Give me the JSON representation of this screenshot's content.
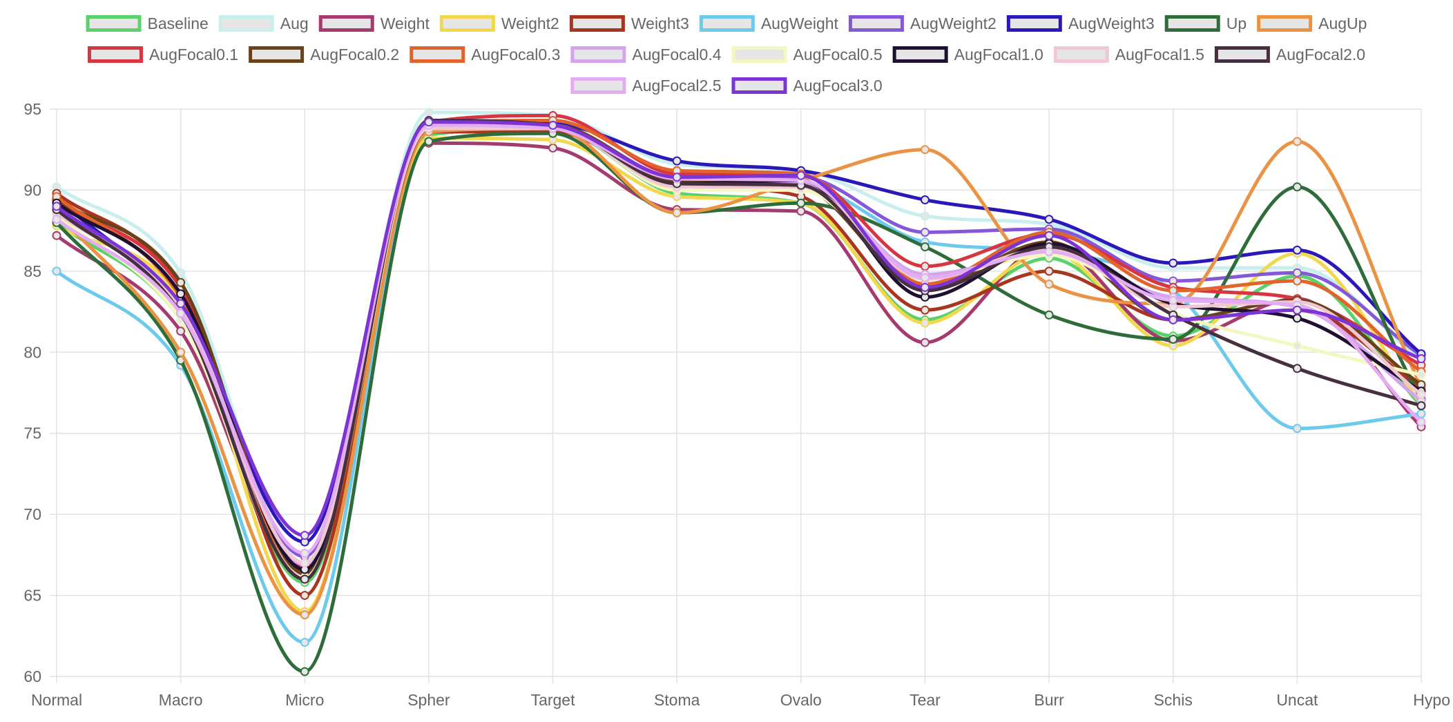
{
  "chart_data": {
    "type": "line",
    "categories": [
      "Normal",
      "Macro",
      "Micro",
      "Spher",
      "Target",
      "Stoma",
      "Ovalo",
      "Tear",
      "Burr",
      "Schis",
      "Uncat",
      "Hypo"
    ],
    "ylim": [
      60,
      95
    ],
    "yticks": [
      60,
      65,
      70,
      75,
      80,
      85,
      90,
      95
    ],
    "grid": true,
    "legend_position": "top",
    "series": [
      {
        "name": "Baseline",
        "color": "#5ad16a",
        "values": [
          88.0,
          82.0,
          65.8,
          93.4,
          93.8,
          89.8,
          89.2,
          82.0,
          85.8,
          81.0,
          84.7,
          76.7
        ]
      },
      {
        "name": "Aug",
        "color": "#c8eeee",
        "values": [
          90.2,
          84.9,
          67.0,
          94.8,
          94.6,
          91.6,
          91.2,
          88.4,
          87.9,
          85.2,
          85.2,
          79.5
        ]
      },
      {
        "name": "Weight",
        "color": "#a53a6e",
        "values": [
          87.2,
          81.3,
          66.2,
          92.9,
          92.6,
          88.8,
          88.7,
          80.6,
          86.6,
          80.7,
          83.3,
          75.4
        ]
      },
      {
        "name": "Weight2",
        "color": "#f2d84e",
        "values": [
          87.8,
          83.2,
          64.0,
          93.2,
          93.1,
          89.6,
          89.2,
          81.8,
          86.2,
          80.4,
          86.1,
          76.8
        ]
      },
      {
        "name": "Weight3",
        "color": "#a83520",
        "values": [
          89.8,
          84.0,
          65.0,
          93.6,
          93.6,
          90.4,
          89.6,
          82.6,
          85.0,
          82.0,
          82.6,
          77.8
        ]
      },
      {
        "name": "AugWeight",
        "color": "#6ecaed",
        "values": [
          85.0,
          79.2,
          62.1,
          93.8,
          94.0,
          90.2,
          90.3,
          86.8,
          86.2,
          83.8,
          75.3,
          76.2
        ]
      },
      {
        "name": "AugWeight2",
        "color": "#8558d8",
        "values": [
          89.0,
          82.8,
          67.4,
          94.0,
          94.0,
          90.8,
          90.8,
          87.4,
          87.6,
          84.4,
          84.9,
          79.8
        ]
      },
      {
        "name": "AugWeight3",
        "color": "#2a18b8",
        "values": [
          89.5,
          82.5,
          68.3,
          94.2,
          94.1,
          91.8,
          91.2,
          89.4,
          88.2,
          85.5,
          86.3,
          79.9
        ]
      },
      {
        "name": "Up",
        "color": "#2e6d3a",
        "values": [
          88.0,
          79.5,
          60.3,
          93.0,
          93.5,
          88.6,
          89.2,
          86.5,
          82.3,
          80.8,
          90.2,
          77.1
        ]
      },
      {
        "name": "AugUp",
        "color": "#ea9344",
        "values": [
          88.6,
          80.0,
          63.8,
          93.6,
          93.8,
          88.6,
          90.6,
          92.5,
          84.2,
          83.0,
          93.0,
          77.9
        ]
      },
      {
        "name": "AugFocal0.1",
        "color": "#d83442",
        "values": [
          89.3,
          84.0,
          66.8,
          94.2,
          94.6,
          91.0,
          90.9,
          85.3,
          87.3,
          84.0,
          83.3,
          79.2
        ]
      },
      {
        "name": "AugFocal0.2",
        "color": "#6b4218",
        "values": [
          89.4,
          84.3,
          66.4,
          93.8,
          94.0,
          90.6,
          90.2,
          84.0,
          86.8,
          82.0,
          83.2,
          78.0
        ]
      },
      {
        "name": "AugFocal0.3",
        "color": "#e0642c",
        "values": [
          89.6,
          83.4,
          66.0,
          94.0,
          94.3,
          91.2,
          91.0,
          84.2,
          87.4,
          83.8,
          84.4,
          78.8
        ]
      },
      {
        "name": "AugFocal0.4",
        "color": "#d4a4ee",
        "values": [
          88.8,
          82.6,
          66.9,
          94.1,
          94.0,
          90.3,
          90.4,
          84.8,
          86.0,
          83.4,
          82.8,
          77.0
        ]
      },
      {
        "name": "AugFocal0.5",
        "color": "#f4f8c0",
        "values": [
          88.4,
          82.0,
          66.1,
          93.9,
          93.9,
          90.0,
          90.0,
          84.6,
          86.0,
          82.4,
          80.4,
          78.6
        ]
      },
      {
        "name": "AugFocal1.0",
        "color": "#1e1030",
        "values": [
          89.2,
          83.6,
          66.6,
          94.0,
          93.9,
          90.4,
          90.6,
          83.4,
          86.7,
          83.0,
          82.1,
          77.6
        ]
      },
      {
        "name": "AugFocal1.5",
        "color": "#f0c8d4",
        "values": [
          88.6,
          82.8,
          67.0,
          93.8,
          93.8,
          90.2,
          90.2,
          84.5,
          86.4,
          82.8,
          83.1,
          77.4
        ]
      },
      {
        "name": "AugFocal2.0",
        "color": "#463040",
        "values": [
          88.8,
          82.4,
          66.0,
          94.3,
          94.0,
          90.4,
          90.3,
          83.8,
          86.5,
          82.3,
          79.0,
          76.7
        ]
      },
      {
        "name": "AugFocal2.5",
        "color": "#e4acf2",
        "values": [
          88.2,
          82.4,
          67.6,
          94.0,
          93.8,
          90.7,
          90.6,
          84.6,
          86.2,
          83.2,
          82.9,
          75.7
        ]
      },
      {
        "name": "AugFocal3.0",
        "color": "#7c34d4",
        "values": [
          89.0,
          83.0,
          68.7,
          94.2,
          94.0,
          90.8,
          90.9,
          84.0,
          87.2,
          82.0,
          82.6,
          79.6
        ]
      }
    ]
  }
}
